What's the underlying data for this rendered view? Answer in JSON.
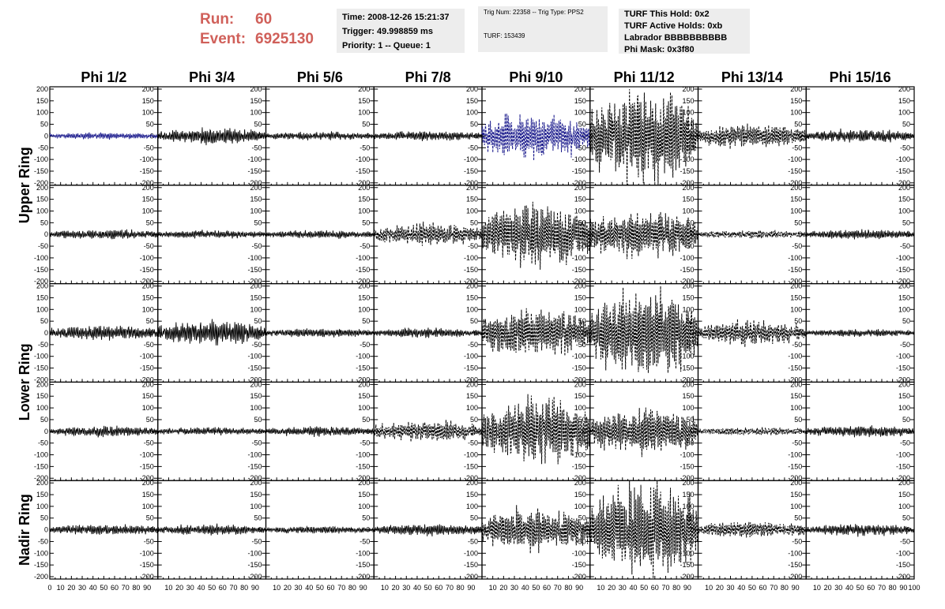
{
  "header": {
    "run_label": "Run:",
    "run_value": "60",
    "event_label": "Event:",
    "event_value": "6925130",
    "colors": {
      "run_event": "#d0605a",
      "info_bg": "#ededed"
    }
  },
  "info_boxes": {
    "time": {
      "time_text": "Time: 2008-12-26 15:21:37",
      "trigger_text": "Trigger: 49.998859 ms",
      "priority_text": "Priority: 1 -- Queue: 1"
    },
    "trig": {
      "trig_text": "Trig Num: 22358 -- Trig Type: PPS2",
      "turf_text": "TURF: 153439"
    },
    "turf": {
      "hold_text": "TURF This Hold: 0x2",
      "active_text": "TURF Active Holds: 0xb",
      "labrador_text": "Labrador BBBBBBBBBB",
      "phimask_text": "Phi Mask: 0x3f80"
    }
  },
  "chart_data": {
    "type": "line",
    "columns": [
      "Phi 1/2",
      "Phi 3/4",
      "Phi 5/6",
      "Phi 7/8",
      "Phi 9/10",
      "Phi 11/12",
      "Phi 13/14",
      "Phi 15/16"
    ],
    "ring_labels": [
      {
        "text": "Upper Ring",
        "rows": [
          0,
          1
        ]
      },
      {
        "text": "Lower Ring",
        "rows": [
          2,
          3
        ]
      },
      {
        "text": "Nadir Ring",
        "rows": [
          4
        ]
      }
    ],
    "xlim": [
      0,
      100
    ],
    "ylim": [
      -210,
      210
    ],
    "y_ticks": [
      -200,
      -150,
      -100,
      -50,
      0,
      50,
      100,
      150,
      200
    ],
    "x_tick_labels": [
      "0",
      "10",
      "20",
      "30",
      "40",
      "50",
      "60",
      "70",
      "80",
      "90",
      "100"
    ],
    "grid": false,
    "colors": {
      "highlight": "#1a1a8c",
      "normal": "#000000"
    },
    "panels": [
      [
        {
          "amp": 12,
          "style": "solid",
          "highlight": true
        },
        {
          "amp": 30,
          "style": "solid",
          "highlight": false
        },
        {
          "amp": 16,
          "style": "solid",
          "highlight": false
        },
        {
          "amp": 18,
          "style": "solid",
          "highlight": false
        },
        {
          "amp": 85,
          "style": "dashed",
          "highlight": true
        },
        {
          "amp": 175,
          "style": "dashed",
          "highlight": false
        },
        {
          "amp": 45,
          "style": "dashed",
          "highlight": false
        },
        {
          "amp": 25,
          "style": "solid",
          "highlight": false
        }
      ],
      [
        {
          "amp": 18,
          "style": "solid",
          "highlight": false
        },
        {
          "amp": 15,
          "style": "solid",
          "highlight": false
        },
        {
          "amp": 15,
          "style": "solid",
          "highlight": false
        },
        {
          "amp": 40,
          "style": "dashed",
          "highlight": false
        },
        {
          "amp": 120,
          "style": "dashed",
          "highlight": false
        },
        {
          "amp": 90,
          "style": "dashed",
          "highlight": false
        },
        {
          "amp": 15,
          "style": "dashed",
          "highlight": false
        },
        {
          "amp": 18,
          "style": "solid",
          "highlight": false
        }
      ],
      [
        {
          "amp": 28,
          "style": "solid",
          "highlight": false
        },
        {
          "amp": 45,
          "style": "solid",
          "highlight": false
        },
        {
          "amp": 16,
          "style": "solid",
          "highlight": false
        },
        {
          "amp": 18,
          "style": "solid",
          "highlight": false
        },
        {
          "amp": 90,
          "style": "dashed",
          "highlight": false
        },
        {
          "amp": 160,
          "style": "dashed",
          "highlight": false
        },
        {
          "amp": 45,
          "style": "dashed",
          "highlight": false
        },
        {
          "amp": 14,
          "style": "solid",
          "highlight": false
        }
      ],
      [
        {
          "amp": 20,
          "style": "solid",
          "highlight": false
        },
        {
          "amp": 15,
          "style": "solid",
          "highlight": false
        },
        {
          "amp": 18,
          "style": "solid",
          "highlight": false
        },
        {
          "amp": 40,
          "style": "dashed",
          "highlight": false
        },
        {
          "amp": 120,
          "style": "dashed",
          "highlight": false
        },
        {
          "amp": 85,
          "style": "dashed",
          "highlight": false
        },
        {
          "amp": 15,
          "style": "dashed",
          "highlight": false
        },
        {
          "amp": 22,
          "style": "solid",
          "highlight": false
        }
      ],
      [
        {
          "amp": 20,
          "style": "solid",
          "highlight": false
        },
        {
          "amp": 20,
          "style": "solid",
          "highlight": false
        },
        {
          "amp": 14,
          "style": "solid",
          "highlight": false
        },
        {
          "amp": 22,
          "style": "solid",
          "highlight": false
        },
        {
          "amp": 80,
          "style": "dashed",
          "highlight": false
        },
        {
          "amp": 175,
          "style": "dashed",
          "highlight": false
        },
        {
          "amp": 30,
          "style": "dashed",
          "highlight": false
        },
        {
          "amp": 22,
          "style": "solid",
          "highlight": false
        }
      ]
    ]
  }
}
